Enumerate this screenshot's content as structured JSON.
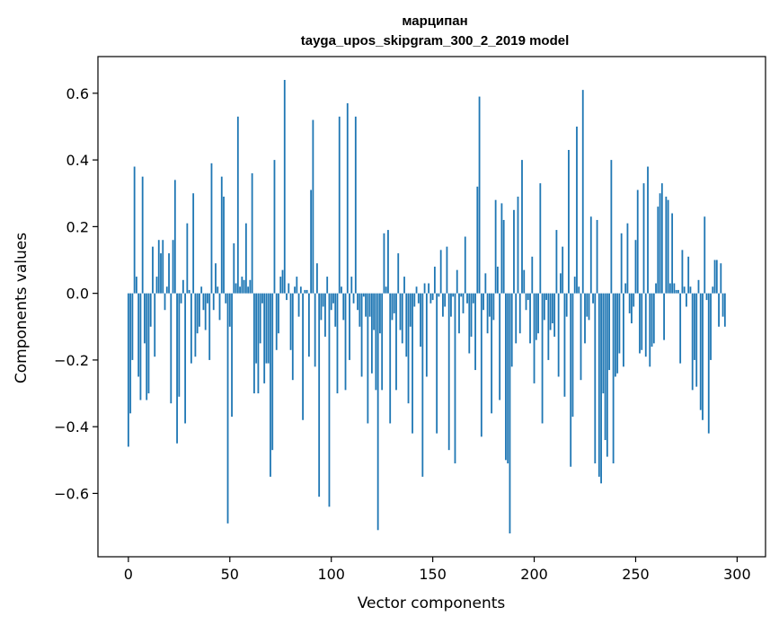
{
  "chart_data": {
    "type": "bar",
    "title": "марципан",
    "subtitle": "tayga_upos_skipgram_300_2_2019 model",
    "xlabel": "Vector components",
    "ylabel": "Components values",
    "xlim": [
      -15,
      314
    ],
    "ylim": [
      -0.79,
      0.71
    ],
    "xticks": [
      0,
      50,
      100,
      150,
      200,
      250,
      300
    ],
    "xtick_labels": [
      "0",
      "50",
      "100",
      "150",
      "200",
      "250",
      "300"
    ],
    "yticks": [
      -0.6,
      -0.4,
      -0.2,
      0.0,
      0.2,
      0.4,
      0.6
    ],
    "ytick_labels": [
      "−0.6",
      "−0.4",
      "−0.2",
      "0.0",
      "0.2",
      "0.4",
      "0.6"
    ],
    "grid": false,
    "bar_color": "#1f77b4",
    "x_start": 0,
    "values": [
      -0.46,
      -0.36,
      -0.2,
      0.38,
      0.05,
      -0.25,
      -0.32,
      0.35,
      -0.15,
      -0.32,
      -0.3,
      -0.1,
      0.14,
      -0.19,
      0.05,
      0.16,
      0.12,
      0.16,
      -0.05,
      0.02,
      0.12,
      -0.33,
      0.16,
      0.34,
      -0.45,
      -0.31,
      -0.03,
      0.04,
      -0.39,
      0.21,
      0.01,
      -0.21,
      0.3,
      -0.19,
      -0.12,
      -0.1,
      0.02,
      -0.05,
      -0.11,
      -0.03,
      -0.2,
      0.39,
      -0.05,
      0.09,
      0.02,
      -0.08,
      0.35,
      0.29,
      -0.03,
      -0.69,
      -0.1,
      -0.37,
      0.15,
      0.03,
      0.53,
      0.02,
      0.05,
      0.04,
      0.21,
      0.02,
      0.04,
      0.36,
      -0.3,
      -0.21,
      -0.3,
      -0.15,
      -0.03,
      -0.27,
      -0.21,
      -0.21,
      -0.55,
      -0.47,
      0.4,
      -0.17,
      -0.12,
      0.05,
      0.07,
      0.64,
      -0.02,
      0.03,
      -0.17,
      -0.26,
      0.02,
      0.05,
      -0.07,
      0.02,
      -0.38,
      0.01,
      0.01,
      -0.19,
      0.31,
      0.52,
      -0.22,
      0.09,
      -0.61,
      -0.08,
      -0.04,
      -0.13,
      0.05,
      -0.64,
      -0.05,
      -0.03,
      -0.1,
      -0.3,
      0.53,
      0.02,
      -0.08,
      -0.29,
      0.57,
      -0.2,
      0.05,
      -0.03,
      0.53,
      -0.05,
      -0.1,
      -0.25,
      -0.01,
      -0.07,
      -0.39,
      -0.07,
      -0.24,
      -0.11,
      -0.29,
      -0.71,
      -0.12,
      -0.29,
      0.18,
      0.02,
      0.19,
      -0.39,
      -0.08,
      -0.06,
      -0.29,
      0.12,
      -0.11,
      -0.15,
      0.05,
      -0.19,
      -0.33,
      -0.1,
      -0.42,
      -0.04,
      0.02,
      -0.03,
      -0.16,
      -0.55,
      0.03,
      -0.25,
      0.03,
      -0.03,
      -0.02,
      0.08,
      -0.42,
      -0.01,
      0.13,
      -0.07,
      -0.04,
      0.14,
      -0.47,
      -0.07,
      -0.01,
      -0.51,
      0.07,
      -0.12,
      -0.01,
      -0.06,
      0.17,
      -0.03,
      -0.18,
      -0.13,
      -0.03,
      -0.23,
      0.32,
      0.59,
      -0.43,
      -0.05,
      0.06,
      -0.12,
      -0.07,
      -0.36,
      -0.08,
      0.28,
      0.08,
      -0.32,
      0.27,
      0.22,
      -0.5,
      -0.51,
      -0.72,
      -0.22,
      0.25,
      -0.15,
      0.29,
      -0.12,
      0.4,
      0.07,
      -0.05,
      -0.02,
      -0.15,
      0.11,
      -0.27,
      -0.14,
      -0.12,
      0.33,
      -0.39,
      -0.08,
      -0.02,
      -0.2,
      -0.11,
      -0.09,
      -0.13,
      0.19,
      -0.25,
      0.06,
      0.14,
      -0.31,
      -0.07,
      0.43,
      -0.52,
      -0.37,
      0.05,
      0.5,
      0.02,
      -0.26,
      0.61,
      -0.15,
      -0.07,
      -0.08,
      0.23,
      -0.03,
      -0.51,
      0.22,
      -0.55,
      -0.57,
      -0.3,
      -0.44,
      -0.49,
      -0.23,
      0.4,
      -0.51,
      -0.25,
      -0.24,
      -0.18,
      0.18,
      -0.22,
      0.03,
      0.21,
      -0.06,
      -0.09,
      -0.04,
      0.16,
      0.31,
      -0.18,
      -0.17,
      0.33,
      -0.19,
      0.38,
      -0.22,
      -0.16,
      -0.15,
      0.03,
      0.26,
      0.3,
      0.33,
      -0.14,
      0.29,
      0.28,
      0.03,
      0.24,
      0.03,
      0.01,
      0.01,
      -0.21,
      0.13,
      0.02,
      -0.04,
      0.11,
      0.02,
      -0.29,
      -0.2,
      -0.28,
      0.04,
      -0.35,
      -0.38,
      0.23,
      -0.02,
      -0.42,
      -0.2,
      0.02,
      0.1,
      0.1,
      -0.1,
      0.09,
      -0.07,
      -0.1
    ]
  }
}
